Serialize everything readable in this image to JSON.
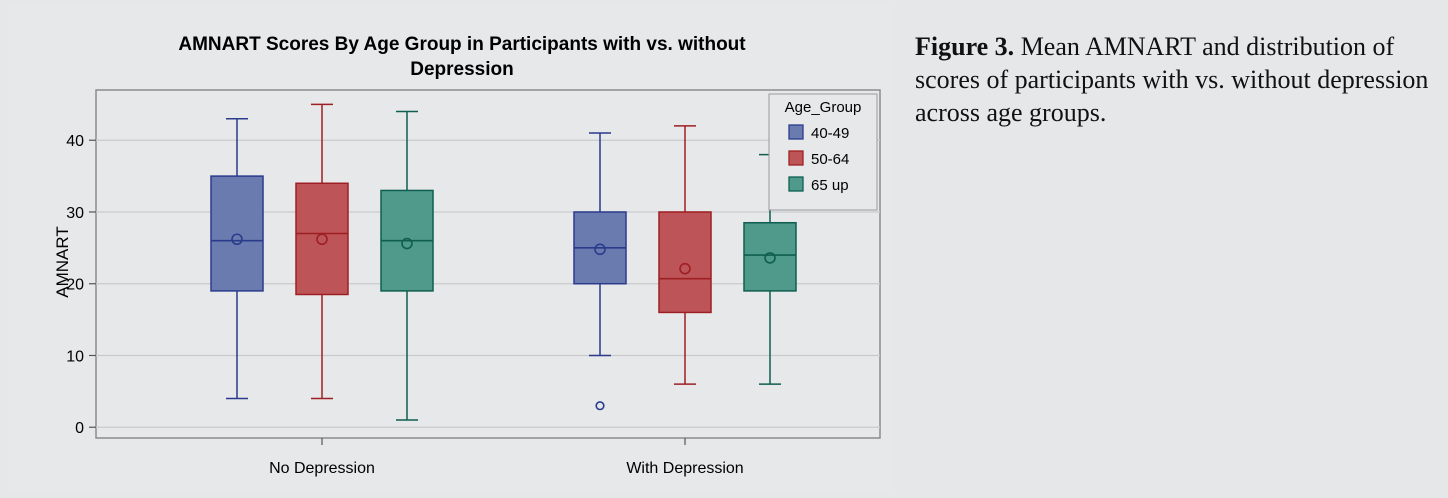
{
  "caption": {
    "label": "Figure 3.",
    "text": " Mean AMNART and distribution of scores of participants with vs. without depression across age groups."
  },
  "chart_data": {
    "type": "boxplot",
    "title_line1": "AMNART Scores By Age Group in Participants with vs. without",
    "title_line2": "Depression",
    "xlabel": "",
    "ylabel": "AMNART",
    "ylim": [
      -1.5,
      47
    ],
    "yticks": [
      0,
      10,
      20,
      30,
      40
    ],
    "grid": true,
    "legend_position": "top-right-inside",
    "legend_title": "Age_Group",
    "categories": [
      "No Depression",
      "With Depression"
    ],
    "series": [
      {
        "name": "40-49",
        "fill": "#6a7bb0",
        "stroke": "#2b3b8c",
        "boxes": [
          {
            "min": 4,
            "q1": 19,
            "median": 26,
            "q3": 35,
            "max": 43,
            "mean": 26.2,
            "outliers": []
          },
          {
            "min": 10,
            "q1": 20,
            "median": 25,
            "q3": 30,
            "max": 41,
            "mean": 24.8,
            "outliers": [
              3
            ]
          }
        ]
      },
      {
        "name": "50-64",
        "fill": "#bd5558",
        "stroke": "#9e1f23",
        "boxes": [
          {
            "min": 4,
            "q1": 18.5,
            "median": 27,
            "q3": 34,
            "max": 45,
            "mean": 26.2,
            "outliers": []
          },
          {
            "min": 6,
            "q1": 16,
            "median": 20.7,
            "q3": 30,
            "max": 42,
            "mean": 22.1,
            "outliers": []
          }
        ]
      },
      {
        "name": "65 up",
        "fill": "#4f9a8a",
        "stroke": "#0f5e50",
        "boxes": [
          {
            "min": 1,
            "q1": 19,
            "median": 26,
            "q3": 33,
            "max": 44,
            "mean": 25.6,
            "outliers": []
          },
          {
            "min": 6,
            "q1": 19,
            "median": 24,
            "q3": 28.5,
            "max": 38,
            "mean": 23.6,
            "outliers": []
          }
        ]
      }
    ]
  }
}
